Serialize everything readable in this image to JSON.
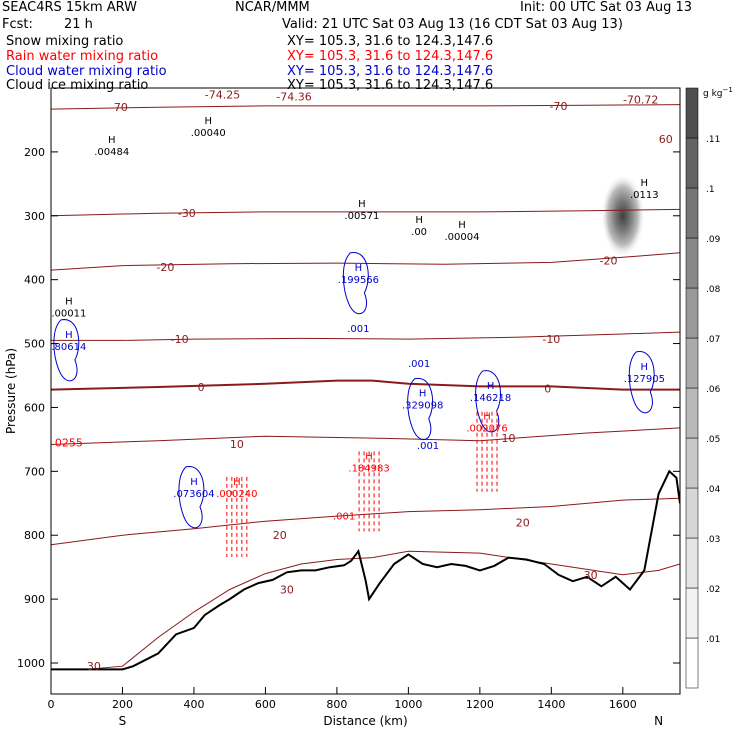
{
  "header": {
    "model": "SEAC4RS 15km ARW",
    "org": "NCAR/MMM",
    "init": "Init: 00 UTC Sat 03 Aug 13",
    "fcst_label": "Fcst:",
    "fcst_value": "21 h",
    "valid": "Valid: 21 UTC Sat 03 Aug 13 (16 CDT Sat 03 Aug 13)",
    "fields": [
      {
        "name": "Snow mixing ratio",
        "color": "#000000",
        "xy": "XY= 105.3, 31.6 to 124.3,147.6"
      },
      {
        "name": "Rain water mixing ratio",
        "color": "#ff0000",
        "xy": "XY= 105.3, 31.6 to 124.3,147.6"
      },
      {
        "name": "Cloud water mixing ratio",
        "color": "#0000cc",
        "xy": "XY= 105.3, 31.6 to 124.3,147.6"
      },
      {
        "name": "Cloud ice mixing ratio",
        "color": "#000000",
        "xy": "XY= 105.3, 31.6 to 124.3,147.6"
      }
    ]
  },
  "chart_data": {
    "type": "contour cross-section",
    "xlabel": "Distance (km)",
    "ylabel": "Pressure (hPa)",
    "xlim": [
      0,
      1760
    ],
    "ylim": [
      1050,
      100
    ],
    "x_ticks": [
      0,
      200,
      400,
      600,
      800,
      1000,
      1200,
      1400,
      1600
    ],
    "y_ticks": [
      200,
      300,
      400,
      500,
      600,
      700,
      800,
      900,
      1000
    ],
    "x_end_labels": {
      "left": "S",
      "right": "N"
    },
    "colorbar": {
      "unit": "g kg",
      "unit_exp": "−1",
      "levels": [
        ".01",
        ".02",
        ".03",
        ".04",
        ".05",
        ".06",
        ".07",
        ".08",
        ".09",
        ".1",
        ".11"
      ],
      "colors": [
        "#ffffff",
        "#f2f2f2",
        "#e4e4e4",
        "#d6d6d6",
        "#c8c8c8",
        "#b9b9b9",
        "#aaaaaa",
        "#999999",
        "#888888",
        "#767676",
        "#636363",
        "#4f4f4f"
      ]
    },
    "terrain": [
      [
        0,
        1010
      ],
      [
        200,
        1010
      ],
      [
        230,
        1005
      ],
      [
        300,
        985
      ],
      [
        350,
        955
      ],
      [
        400,
        945
      ],
      [
        430,
        925
      ],
      [
        470,
        910
      ],
      [
        500,
        900
      ],
      [
        540,
        885
      ],
      [
        580,
        875
      ],
      [
        620,
        870
      ],
      [
        660,
        858
      ],
      [
        700,
        855
      ],
      [
        740,
        855
      ],
      [
        780,
        850
      ],
      [
        820,
        847
      ],
      [
        840,
        840
      ],
      [
        860,
        825
      ],
      [
        880,
        870
      ],
      [
        890,
        900
      ],
      [
        920,
        875
      ],
      [
        960,
        845
      ],
      [
        1000,
        830
      ],
      [
        1040,
        845
      ],
      [
        1080,
        850
      ],
      [
        1120,
        845
      ],
      [
        1160,
        848
      ],
      [
        1200,
        855
      ],
      [
        1240,
        848
      ],
      [
        1280,
        835
      ],
      [
        1330,
        838
      ],
      [
        1380,
        845
      ],
      [
        1420,
        862
      ],
      [
        1460,
        872
      ],
      [
        1500,
        865
      ],
      [
        1540,
        880
      ],
      [
        1580,
        865
      ],
      [
        1620,
        885
      ],
      [
        1660,
        855
      ],
      [
        1700,
        735
      ],
      [
        1730,
        700
      ],
      [
        1750,
        710
      ],
      [
        1760,
        750
      ]
    ],
    "temperature_isotherms": [
      {
        "label": "30",
        "points": [
          [
            100,
            1010
          ],
          [
            200,
            1005
          ],
          [
            300,
            960
          ],
          [
            400,
            920
          ],
          [
            500,
            885
          ],
          [
            600,
            860
          ],
          [
            700,
            845
          ],
          [
            800,
            838
          ],
          [
            900,
            835
          ],
          [
            1000,
            825
          ],
          [
            1200,
            828
          ],
          [
            1400,
            845
          ],
          [
            1600,
            862
          ],
          [
            1700,
            855
          ],
          [
            1760,
            845
          ]
        ]
      },
      {
        "label": "20",
        "points": [
          [
            0,
            815
          ],
          [
            200,
            800
          ],
          [
            400,
            790
          ],
          [
            600,
            778
          ],
          [
            800,
            770
          ],
          [
            1000,
            763
          ],
          [
            1200,
            760
          ],
          [
            1400,
            755
          ],
          [
            1600,
            745
          ],
          [
            1760,
            742
          ]
        ]
      },
      {
        "label": "10",
        "points": [
          [
            0,
            658
          ],
          [
            300,
            652
          ],
          [
            600,
            645
          ],
          [
            900,
            648
          ],
          [
            1200,
            652
          ],
          [
            1500,
            640
          ],
          [
            1760,
            632
          ]
        ]
      },
      {
        "label": "0",
        "points": [
          [
            0,
            572
          ],
          [
            300,
            568
          ],
          [
            600,
            563
          ],
          [
            800,
            558
          ],
          [
            900,
            558
          ],
          [
            1000,
            563
          ],
          [
            1200,
            567
          ],
          [
            1400,
            567
          ],
          [
            1600,
            572
          ],
          [
            1760,
            572
          ]
        ]
      },
      {
        "label": "-10",
        "points": [
          [
            0,
            495
          ],
          [
            200,
            495
          ],
          [
            400,
            493
          ],
          [
            700,
            492
          ],
          [
            1000,
            493
          ],
          [
            1300,
            490
          ],
          [
            1600,
            485
          ],
          [
            1760,
            482
          ]
        ]
      },
      {
        "label": "-20",
        "points": [
          [
            0,
            385
          ],
          [
            200,
            378
          ],
          [
            500,
            375
          ],
          [
            800,
            374
          ],
          [
            1100,
            376
          ],
          [
            1400,
            373
          ],
          [
            1600,
            365
          ],
          [
            1760,
            358
          ]
        ]
      },
      {
        "label": "-30",
        "points": [
          [
            0,
            300
          ],
          [
            300,
            296
          ],
          [
            600,
            294
          ],
          [
            900,
            294
          ],
          [
            1200,
            294
          ],
          [
            1500,
            292
          ],
          [
            1760,
            290
          ]
        ]
      },
      {
        "label": "-70",
        "points": [
          [
            0,
            133
          ],
          [
            300,
            130
          ],
          [
            600,
            128
          ],
          [
            900,
            128
          ],
          [
            1200,
            128
          ],
          [
            1500,
            127
          ],
          [
            1760,
            126
          ]
        ]
      }
    ],
    "contour_labels": [
      {
        "text": "30",
        "x": 120,
        "y": 1005,
        "color": "#8b1a1a"
      },
      {
        "text": "30",
        "x": 660,
        "y": 885,
        "color": "#8b1a1a"
      },
      {
        "text": "30",
        "x": 1510,
        "y": 862,
        "color": "#8b1a1a"
      },
      {
        "text": "20",
        "x": 640,
        "y": 800,
        "color": "#8b1a1a"
      },
      {
        "text": "20",
        "x": 1320,
        "y": 780,
        "color": "#8b1a1a"
      },
      {
        "text": "10",
        "x": 520,
        "y": 657,
        "color": "#8b1a1a"
      },
      {
        "text": "10",
        "x": 1280,
        "y": 648,
        "color": "#8b1a1a"
      },
      {
        "text": "0",
        "x": 420,
        "y": 568,
        "color": "#8b1a1a"
      },
      {
        "text": "0",
        "x": 1390,
        "y": 570,
        "color": "#8b1a1a"
      },
      {
        "text": "-10",
        "x": 360,
        "y": 493,
        "color": "#8b1a1a"
      },
      {
        "text": "-10",
        "x": 1400,
        "y": 493,
        "color": "#8b1a1a"
      },
      {
        "text": "-20",
        "x": 320,
        "y": 380,
        "color": "#8b1a1a"
      },
      {
        "text": "-20",
        "x": 1560,
        "y": 370,
        "color": "#8b1a1a"
      },
      {
        "text": "-30",
        "x": 380,
        "y": 296,
        "color": "#8b1a1a"
      },
      {
        "text": "-70",
        "x": 190,
        "y": 130,
        "color": "#8b1a1a"
      },
      {
        "text": "-70",
        "x": 1420,
        "y": 128,
        "color": "#8b1a1a"
      },
      {
        "text": "60",
        "x": 1720,
        "y": 180,
        "color": "#8b1a1a"
      },
      {
        "text": "-74.25",
        "x": 480,
        "y": 110,
        "color": "#8b1a1a"
      },
      {
        "text": "-74.36",
        "x": 680,
        "y": 113,
        "color": "#8b1a1a"
      },
      {
        "text": "-70.72",
        "x": 1650,
        "y": 118,
        "color": "#8b1a1a"
      },
      {
        "text": "0255",
        "x": 50,
        "y": 655,
        "color": "#ff0000"
      }
    ],
    "maxima_markers": [
      {
        "h": "H",
        "value": ".00484",
        "x": 170,
        "y": 205,
        "color": "#000000"
      },
      {
        "h": "H",
        "value": ".00040",
        "x": 440,
        "y": 175,
        "color": "#000000"
      },
      {
        "h": "H",
        "value": ".00571",
        "x": 870,
        "y": 305,
        "color": "#000000"
      },
      {
        "h": "H",
        "value": ".00",
        "x": 1030,
        "y": 330,
        "color": "#000000"
      },
      {
        "h": "H",
        "value": ".00004",
        "x": 1150,
        "y": 338,
        "color": "#000000"
      },
      {
        "h": "H",
        "value": ".0113",
        "x": 1660,
        "y": 272,
        "color": "#000000"
      },
      {
        "h": "H",
        "value": ".00011",
        "x": 50,
        "y": 458,
        "color": "#000000"
      },
      {
        "h": "H",
        "value": ".80614",
        "x": 50,
        "y": 510,
        "color": "#0000cc"
      },
      {
        "h": "H",
        "value": ".199566",
        "x": 860,
        "y": 405,
        "color": "#0000cc"
      },
      {
        "h": "",
        "value": ".001",
        "x": 860,
        "y": 482,
        "color": "#0000cc"
      },
      {
        "h": "",
        "value": ".001",
        "x": 1030,
        "y": 537,
        "color": "#0000cc"
      },
      {
        "h": "H",
        "value": ".329098",
        "x": 1040,
        "y": 602,
        "color": "#0000cc"
      },
      {
        "h": "H",
        "value": ".146218",
        "x": 1230,
        "y": 590,
        "color": "#0000cc"
      },
      {
        "h": "H",
        "value": ".127905",
        "x": 1660,
        "y": 560,
        "color": "#0000cc"
      },
      {
        "h": "H",
        "value": ".073604",
        "x": 400,
        "y": 740,
        "color": "#0000cc"
      },
      {
        "h": "",
        "value": ".001",
        "x": 1055,
        "y": 665,
        "color": "#0000cc"
      },
      {
        "h": "H",
        "value": ".000240",
        "x": 520,
        "y": 740,
        "color": "#ff0000"
      },
      {
        "h": "H",
        "value": ".184983",
        "x": 890,
        "y": 700,
        "color": "#ff0000"
      },
      {
        "h": "H",
        "value": ".002076",
        "x": 1220,
        "y": 638,
        "color": "#ff0000"
      },
      {
        "h": "",
        "value": ".001",
        "x": 820,
        "y": 775,
        "color": "#ff0000"
      }
    ],
    "cloud_ice_max": {
      "x": 1600,
      "y": 300,
      "value": 0.113
    }
  }
}
